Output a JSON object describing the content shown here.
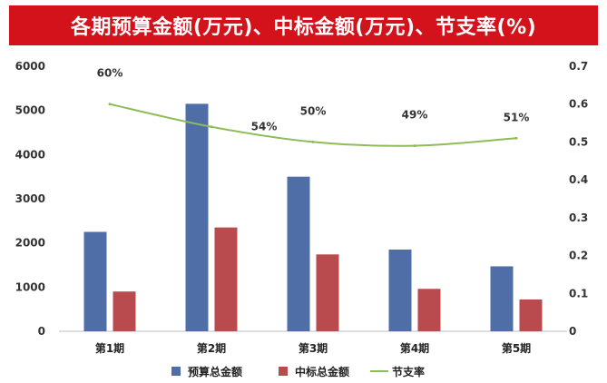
{
  "title": "各期预算金额(万元)、中标金额(万元)、节支率(%)",
  "chart_data": {
    "type": "bar",
    "categories": [
      "第1期",
      "第2期",
      "第3期",
      "第4期",
      "第5期"
    ],
    "series": [
      {
        "name": "预算总金额",
        "type": "bar",
        "axis": "left",
        "color": "#4f6ea8",
        "values": [
          2250,
          5150,
          3500,
          1850,
          1470
        ]
      },
      {
        "name": "中标总金额",
        "type": "bar",
        "axis": "left",
        "color": "#b94a4d",
        "values": [
          900,
          2350,
          1740,
          960,
          720
        ]
      },
      {
        "name": "节支率",
        "type": "line",
        "axis": "right",
        "color": "#8ebc5a",
        "values": [
          0.6,
          0.54,
          0.5,
          0.49,
          0.51
        ],
        "labels": [
          "60%",
          "54%",
          "50%",
          "49%",
          "51%"
        ]
      }
    ],
    "ylim": [
      0,
      6000
    ],
    "y_ticks": [
      0,
      1000,
      2000,
      3000,
      4000,
      5000,
      6000
    ],
    "y2lim": [
      0,
      0.7
    ],
    "y2_ticks": [
      "0",
      "0.1",
      "0.2",
      "0.3",
      "0.4",
      "0.5",
      "0.6",
      "0.7"
    ],
    "legend_position": "bottom",
    "grid": false
  }
}
